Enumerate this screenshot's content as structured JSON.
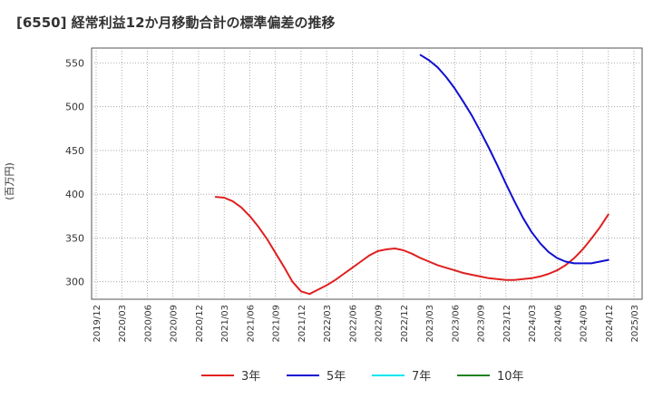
{
  "chart_data": {
    "type": "line",
    "title": "[6550]  経常利益12か月移動合計の標準偏差の推移",
    "ylabel": "(百万円)",
    "xlabel": "",
    "ylim": [
      280,
      567
    ],
    "yticks": [
      300,
      350,
      400,
      450,
      500,
      550
    ],
    "xticks": [
      "2019/12",
      "2020/03",
      "2020/06",
      "2020/09",
      "2020/12",
      "2021/03",
      "2021/06",
      "2021/09",
      "2021/12",
      "2022/03",
      "2022/06",
      "2022/09",
      "2022/12",
      "2023/03",
      "2023/06",
      "2023/09",
      "2023/12",
      "2024/03",
      "2024/06",
      "2024/09",
      "2024/12",
      "2025/03"
    ],
    "grid": true,
    "legend_position": "bottom",
    "series": [
      {
        "name": "3年",
        "color": "#e02020",
        "x": [
          "2021/02",
          "2021/03",
          "2021/04",
          "2021/05",
          "2021/06",
          "2021/07",
          "2021/08",
          "2021/09",
          "2021/10",
          "2021/11",
          "2021/12",
          "2022/01",
          "2022/02",
          "2022/03",
          "2022/04",
          "2022/05",
          "2022/06",
          "2022/07",
          "2022/08",
          "2022/09",
          "2022/10",
          "2022/11",
          "2022/12",
          "2023/01",
          "2023/02",
          "2023/03",
          "2023/04",
          "2023/05",
          "2023/06",
          "2023/07",
          "2023/08",
          "2023/09",
          "2023/10",
          "2023/11",
          "2023/12",
          "2024/01",
          "2024/02",
          "2024/03",
          "2024/04",
          "2024/05",
          "2024/06",
          "2024/07",
          "2024/08",
          "2024/09",
          "2024/10",
          "2024/11",
          "2024/12"
        ],
        "values": [
          397,
          396,
          392,
          385,
          375,
          363,
          349,
          333,
          317,
          300,
          289,
          286,
          291,
          296,
          302,
          309,
          316,
          323,
          330,
          335,
          337,
          338,
          336,
          332,
          327,
          323,
          319,
          316,
          313,
          310,
          308,
          306,
          304,
          303,
          302,
          302,
          303,
          304,
          306,
          309,
          313,
          319,
          327,
          337,
          349,
          362,
          377
        ]
      },
      {
        "name": "5年",
        "color": "#1010d0",
        "x": [
          "2023/02",
          "2023/03",
          "2023/04",
          "2023/05",
          "2023/06",
          "2023/07",
          "2023/08",
          "2023/09",
          "2023/10",
          "2023/11",
          "2023/12",
          "2024/01",
          "2024/02",
          "2024/03",
          "2024/04",
          "2024/05",
          "2024/06",
          "2024/07",
          "2024/08",
          "2024/09",
          "2024/10",
          "2024/11",
          "2024/12"
        ],
        "values": [
          559,
          553,
          545,
          534,
          521,
          506,
          490,
          472,
          453,
          433,
          412,
          392,
          373,
          357,
          344,
          334,
          327,
          323,
          321,
          321,
          321,
          323,
          325
        ]
      },
      {
        "name": "7年",
        "color": "#00e5ee",
        "x": [],
        "values": []
      },
      {
        "name": "10年",
        "color": "#208020",
        "x": [],
        "values": []
      }
    ]
  }
}
